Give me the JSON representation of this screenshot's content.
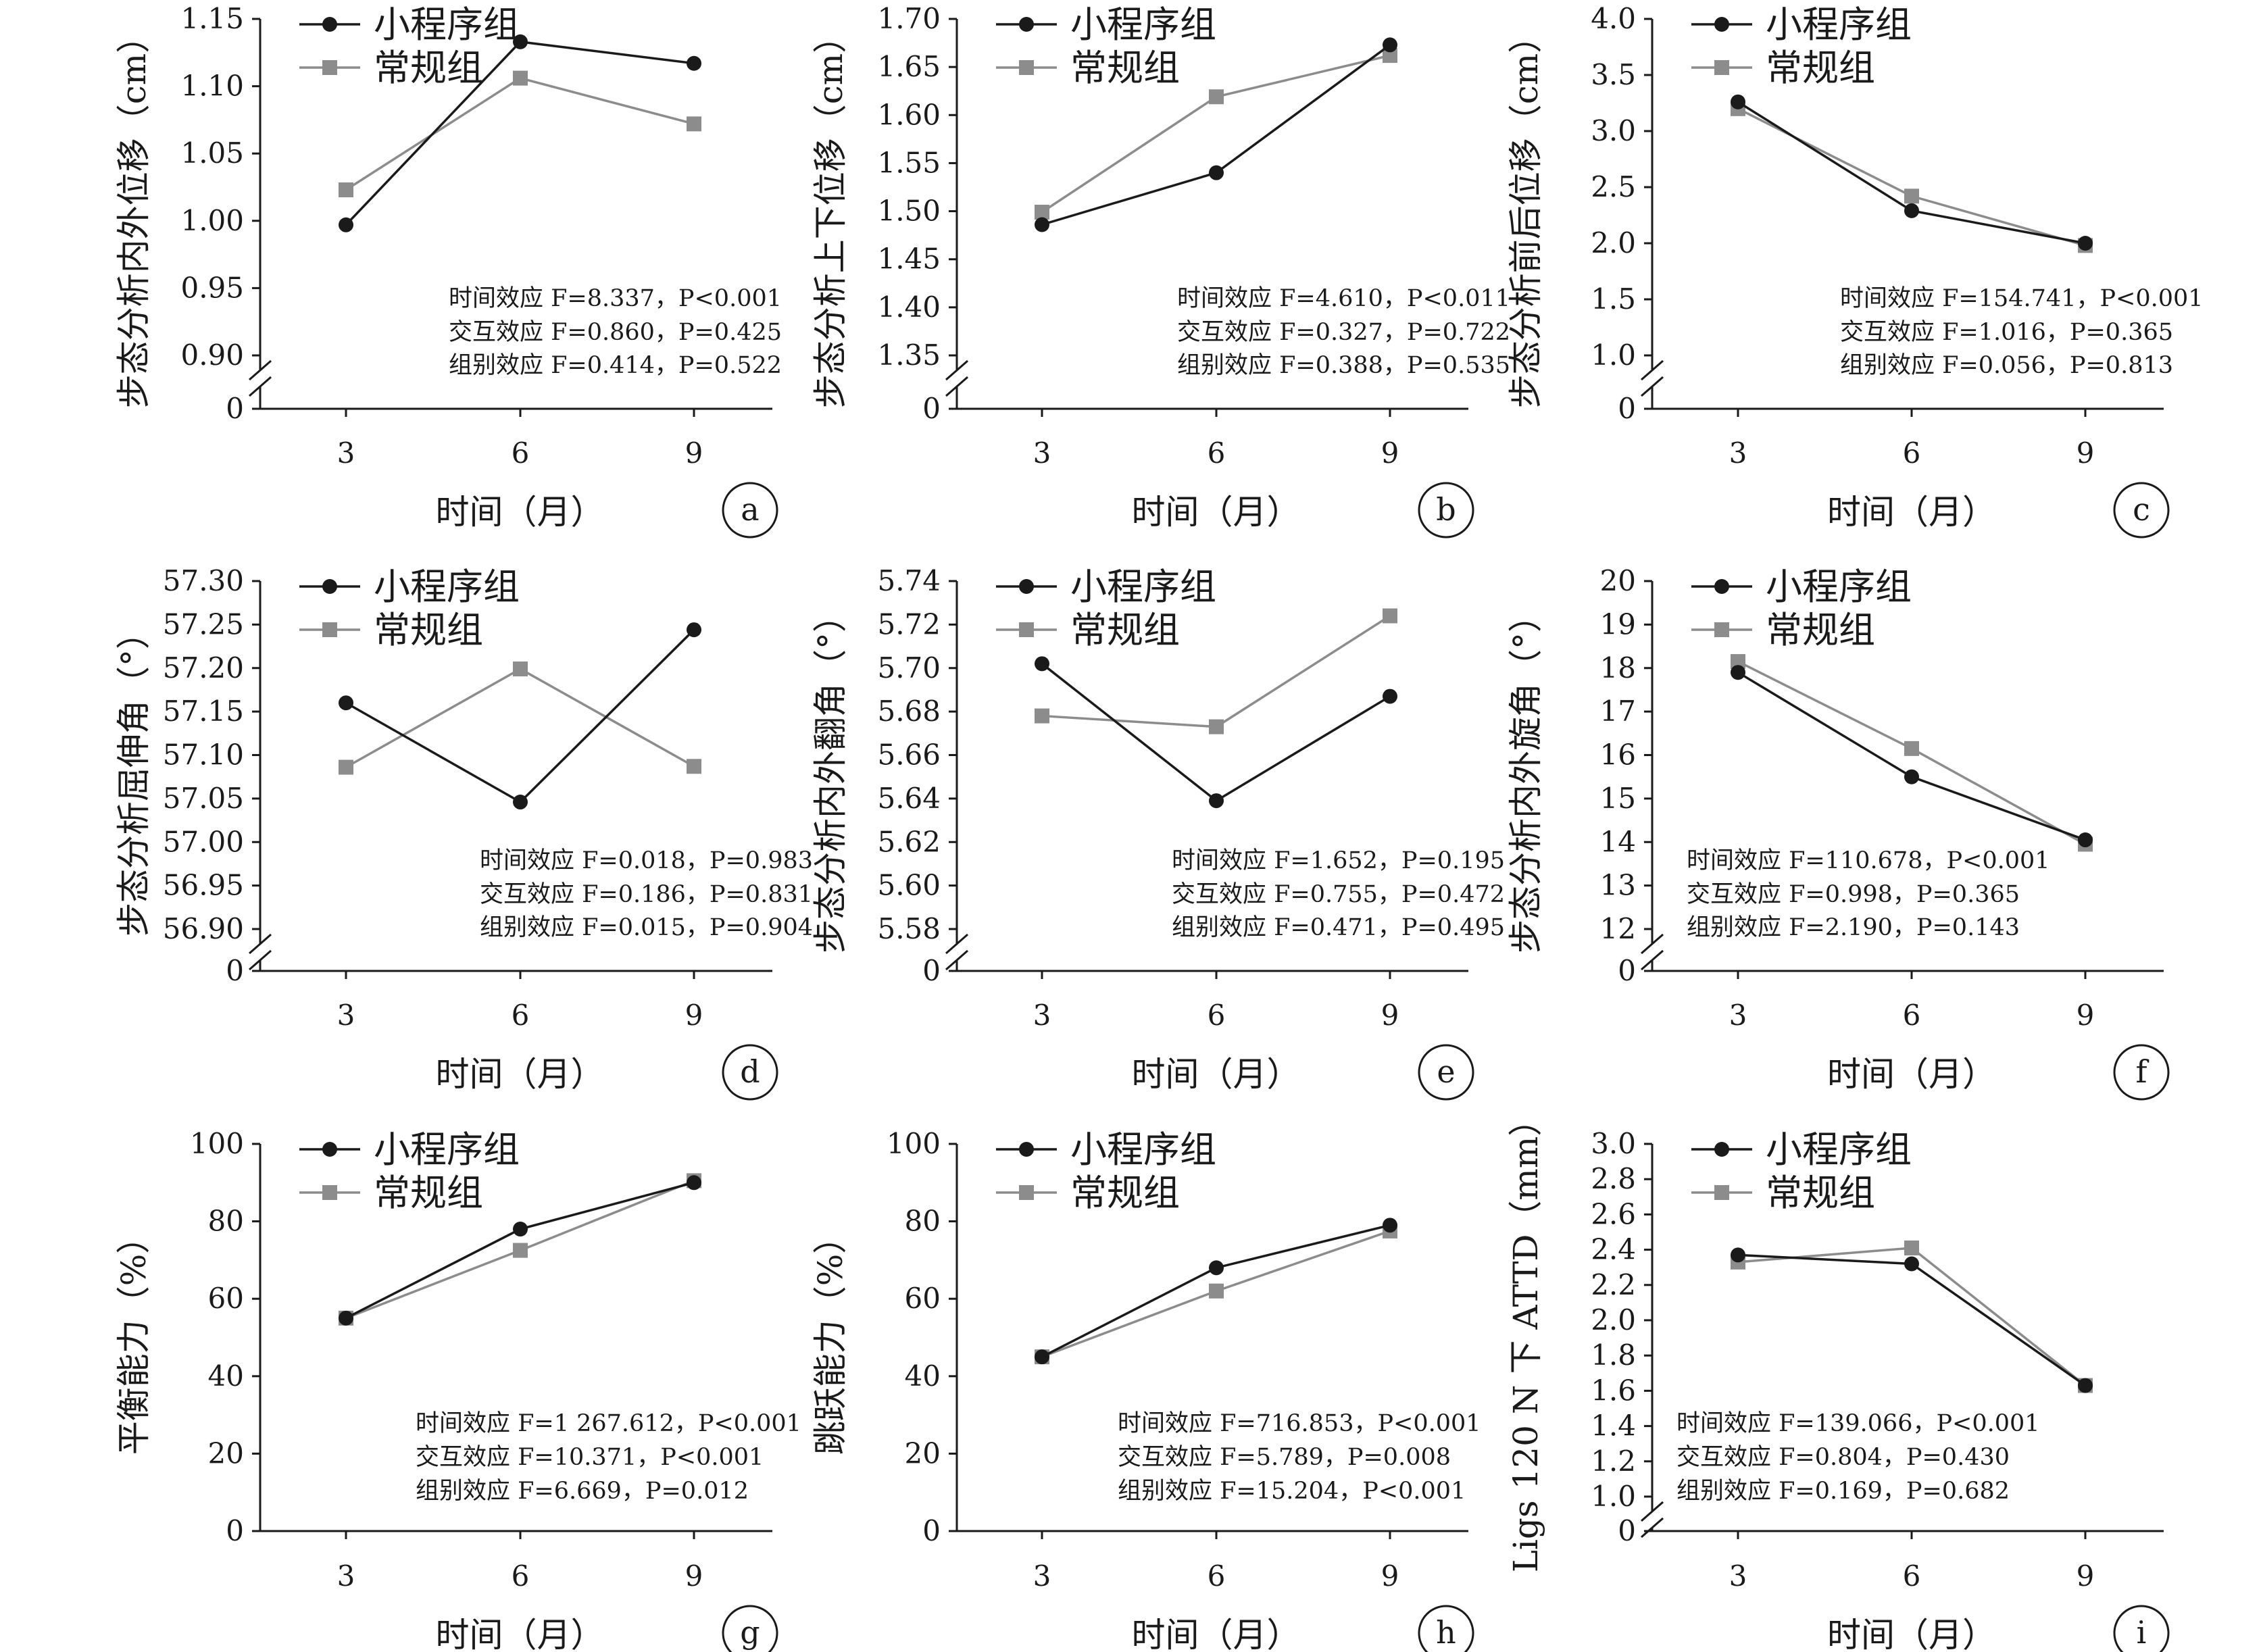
{
  "colors": {
    "group_app": "#1a1a1a",
    "group_conv": "#8c8c8c",
    "axis": "#1a1a1a"
  },
  "chart_data": [
    {
      "type": "line",
      "panel": "a",
      "ylabel": "步态分析内外位移（cm）",
      "xlabel": "时间（月）",
      "x": [
        3,
        6,
        9
      ],
      "y_ticks": [
        "0.90",
        "0.95",
        "1.00",
        "1.05",
        "1.10",
        "1.15"
      ],
      "zero_label": "0",
      "axis_break": true,
      "ylim": [
        0.9,
        1.15
      ],
      "series": [
        {
          "name": "小程序组",
          "marker": "circle",
          "values": [
            0.997,
            1.133,
            1.117
          ]
        },
        {
          "name": "常规组",
          "marker": "square",
          "values": [
            1.023,
            1.106,
            1.072
          ]
        }
      ],
      "stats": [
        "时间效应 F=8.337，P<0.001",
        "交互效应 F=0.860，P=0.425",
        "组别效应 F=0.414，P=0.522"
      ],
      "legend_position": "top-left"
    },
    {
      "type": "line",
      "panel": "b",
      "ylabel": "步态分析上下位移（cm）",
      "xlabel": "时间（月）",
      "x": [
        3,
        6,
        9
      ],
      "y_ticks": [
        "1.35",
        "1.40",
        "1.45",
        "1.50",
        "1.55",
        "1.60",
        "1.65",
        "1.70"
      ],
      "zero_label": "0",
      "axis_break": true,
      "ylim": [
        1.35,
        1.7
      ],
      "series": [
        {
          "name": "小程序组",
          "marker": "circle",
          "values": [
            1.486,
            1.54,
            1.673
          ]
        },
        {
          "name": "常规组",
          "marker": "square",
          "values": [
            1.499,
            1.619,
            1.662
          ]
        }
      ],
      "stats": [
        "时间效应 F=4.610，P<0.011",
        "交互效应 F=0.327，P=0.722",
        "组别效应 F=0.388，P=0.535"
      ],
      "legend_position": "top-left"
    },
    {
      "type": "line",
      "panel": "c",
      "ylabel": "步态分析前后位移（cm）",
      "xlabel": "时间（月）",
      "x": [
        3,
        6,
        9
      ],
      "y_ticks": [
        "1.0",
        "1.5",
        "2.0",
        "2.5",
        "3.0",
        "3.5",
        "4.0"
      ],
      "zero_label": "0",
      "axis_break": true,
      "ylim": [
        1.0,
        4.0
      ],
      "series": [
        {
          "name": "小程序组",
          "marker": "circle",
          "values": [
            3.26,
            2.29,
            2.0
          ]
        },
        {
          "name": "常规组",
          "marker": "square",
          "values": [
            3.2,
            2.42,
            1.98
          ]
        }
      ],
      "stats": [
        "时间效应 F=154.741，P<0.001",
        "交互效应 F=1.016，P=0.365",
        "组别效应 F=0.056，P=0.813"
      ],
      "legend_position": "top-left"
    },
    {
      "type": "line",
      "panel": "d",
      "ylabel": "步态分析屈伸角（°）",
      "xlabel": "时间（月）",
      "x": [
        3,
        6,
        9
      ],
      "y_ticks": [
        "56.90",
        "56.95",
        "57.00",
        "57.05",
        "57.10",
        "57.15",
        "57.20",
        "57.25",
        "57.30"
      ],
      "zero_label": "0",
      "axis_break": true,
      "ylim": [
        56.9,
        57.3
      ],
      "series": [
        {
          "name": "小程序组",
          "marker": "circle",
          "values": [
            57.16,
            57.046,
            57.244
          ]
        },
        {
          "name": "常规组",
          "marker": "square",
          "values": [
            57.086,
            57.199,
            57.087
          ]
        }
      ],
      "stats": [
        "时间效应 F=0.018，P=0.983",
        "交互效应 F=0.186，P=0.831",
        "组别效应 F=0.015，P=0.904"
      ],
      "legend_position": "top-left"
    },
    {
      "type": "line",
      "panel": "e",
      "ylabel": "步态分析内外翻角（°）",
      "xlabel": "时间（月）",
      "x": [
        3,
        6,
        9
      ],
      "y_ticks": [
        "5.58",
        "5.60",
        "5.62",
        "5.64",
        "5.66",
        "5.68",
        "5.70",
        "5.72",
        "5.74"
      ],
      "zero_label": "0",
      "axis_break": true,
      "ylim": [
        5.58,
        5.74
      ],
      "series": [
        {
          "name": "小程序组",
          "marker": "circle",
          "values": [
            5.702,
            5.639,
            5.687
          ]
        },
        {
          "name": "常规组",
          "marker": "square",
          "values": [
            5.678,
            5.673,
            5.724
          ]
        }
      ],
      "stats": [
        "时间效应 F=1.652，P=0.195",
        "交互效应 F=0.755，P=0.472",
        "组别效应 F=0.471，P=0.495"
      ],
      "legend_position": "top-left"
    },
    {
      "type": "line",
      "panel": "f",
      "ylabel": "步态分析内外旋角（°）",
      "xlabel": "时间（月）",
      "x": [
        3,
        6,
        9
      ],
      "y_ticks": [
        "12",
        "13",
        "14",
        "15",
        "16",
        "17",
        "18",
        "19",
        "20"
      ],
      "zero_label": "0",
      "axis_break": true,
      "ylim": [
        12,
        20
      ],
      "series": [
        {
          "name": "小程序组",
          "marker": "circle",
          "values": [
            17.9,
            15.5,
            14.05
          ]
        },
        {
          "name": "常规组",
          "marker": "square",
          "values": [
            18.15,
            16.15,
            13.95
          ]
        }
      ],
      "stats": [
        "时间效应 F=110.678，P<0.001",
        "交互效应 F=0.998，P=0.365",
        "组别效应 F=2.190，P=0.143"
      ],
      "legend_position": "top-left"
    },
    {
      "type": "line",
      "panel": "g",
      "ylabel": "平衡能力（%）",
      "xlabel": "时间（月）",
      "x": [
        3,
        6,
        9
      ],
      "y_ticks": [
        "0",
        "20",
        "40",
        "60",
        "80",
        "100"
      ],
      "zero_label": "",
      "axis_break": false,
      "ylim": [
        0,
        100
      ],
      "series": [
        {
          "name": "小程序组",
          "marker": "circle",
          "values": [
            55,
            78,
            90
          ]
        },
        {
          "name": "常规组",
          "marker": "square",
          "values": [
            55,
            72.5,
            90.5
          ]
        }
      ],
      "stats": [
        "时间效应 F=1 267.612，P<0.001",
        "交互效应 F=10.371，P<0.001",
        "组别效应 F=6.669，P=0.012"
      ],
      "legend_position": "top-left"
    },
    {
      "type": "line",
      "panel": "h",
      "ylabel": "跳跃能力（%）",
      "xlabel": "时间（月）",
      "x": [
        3,
        6,
        9
      ],
      "y_ticks": [
        "0",
        "20",
        "40",
        "60",
        "80",
        "100"
      ],
      "zero_label": "",
      "axis_break": false,
      "ylim": [
        0,
        100
      ],
      "series": [
        {
          "name": "小程序组",
          "marker": "circle",
          "values": [
            45,
            68,
            79
          ]
        },
        {
          "name": "常规组",
          "marker": "square",
          "values": [
            45,
            62,
            77.5
          ]
        }
      ],
      "stats": [
        "时间效应 F=716.853，P<0.001",
        "交互效应 F=5.789，P=0.008",
        "组别效应 F=15.204，P<0.001"
      ],
      "legend_position": "top-left"
    },
    {
      "type": "line",
      "panel": "i",
      "ylabel": "Ligs 120 N 下 ATTD（mm）",
      "xlabel": "时间（月）",
      "x": [
        3,
        6,
        9
      ],
      "y_ticks": [
        "1.0",
        "1.2",
        "1.4",
        "1.6",
        "1.8",
        "2.0",
        "2.2",
        "2.4",
        "2.6",
        "2.8",
        "3.0"
      ],
      "zero_label": "0",
      "axis_break": true,
      "ylim": [
        1.0,
        3.0
      ],
      "series": [
        {
          "name": "小程序组",
          "marker": "circle",
          "values": [
            2.37,
            2.32,
            1.63
          ]
        },
        {
          "name": "常规组",
          "marker": "square",
          "values": [
            2.33,
            2.41,
            1.63
          ]
        }
      ],
      "stats": [
        "时间效应 F=139.066，P<0.001",
        "交互效应 F=0.804，P=0.430",
        "组别效应 F=0.169，P=0.682"
      ],
      "legend_position": "top-left"
    }
  ]
}
